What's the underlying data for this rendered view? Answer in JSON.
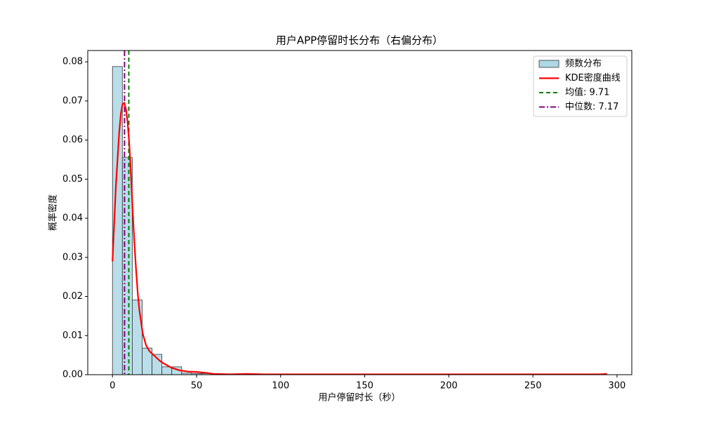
{
  "chart_data": {
    "type": "histogram",
    "title": "用户APP停留时长分布（右偏分布）",
    "x_label": "用户停留时长（秒）",
    "y_label": "概率密度",
    "bins": [
      0,
      5.88,
      11.76,
      17.64,
      23.52,
      29.4,
      35.28,
      41.16,
      47.04,
      52.92,
      58.8,
      64.68,
      70.56,
      76.44,
      82.32,
      88.2,
      94.08,
      99.96,
      105.84,
      111.72,
      117.6,
      123.48,
      129.36,
      135.24,
      141.12,
      147,
      152.88,
      158.76,
      164.64,
      170.52,
      176.4,
      182.28,
      188.16,
      194.04,
      199.92,
      205.8,
      211.68,
      217.56,
      223.44,
      229.32,
      235.2,
      241.08,
      246.96,
      252.84,
      258.72,
      264.6,
      270.48,
      276.36,
      282.24,
      288.12,
      294
    ],
    "counts": [
      0.0788,
      0.0555,
      0.0191,
      0.0068,
      0.0052,
      0.002,
      0.002,
      0.0004,
      0.0003,
      0.0003,
      0.0001,
      0,
      0.0001,
      0.0001,
      0,
      0,
      0,
      0,
      0,
      0,
      0,
      0,
      0,
      0,
      0,
      0,
      0,
      0,
      0,
      0,
      0,
      0,
      0,
      0,
      0,
      0,
      0,
      0,
      0,
      0,
      0,
      0,
      0,
      0,
      0,
      0,
      0,
      0,
      0,
      0.0001
    ],
    "hist_name": "频数分布",
    "hist_color": "#add8e6",
    "hist_edge": "#333333",
    "lines": [
      {
        "name": "KDE密度曲线",
        "color": "#ff0000",
        "x": [
          0,
          2,
          4,
          5,
          6,
          7,
          8,
          9,
          10,
          11,
          12,
          13,
          14,
          15,
          16,
          18,
          20,
          22,
          25,
          28,
          30,
          35,
          40,
          45,
          50,
          55,
          60,
          70,
          80,
          90,
          100,
          150,
          200,
          250,
          290,
          294
        ],
        "values": [
          0.029,
          0.048,
          0.062,
          0.0668,
          0.0692,
          0.0695,
          0.068,
          0.0645,
          0.059,
          0.051,
          0.042,
          0.034,
          0.027,
          0.021,
          0.0165,
          0.0105,
          0.0075,
          0.006,
          0.0048,
          0.0036,
          0.003,
          0.0018,
          0.0011,
          0.0008,
          0.0007,
          0.0005,
          0.0002,
          0.0001,
          0.0002,
          0.0001,
          0.0001,
          0.0001,
          0.0001,
          0.0001,
          0.0001,
          0.0002
        ]
      }
    ],
    "vlines": [
      {
        "name": "均值: 9.71",
        "value": 9.71,
        "color": "#008000",
        "dash": "6,4"
      },
      {
        "name": "中位数: 7.17",
        "value": 7.17,
        "color": "#800080",
        "dash": "8,3,2,3"
      }
    ],
    "xlim": [
      -14.7,
      308.8
    ],
    "ylim": [
      0,
      0.0829
    ],
    "xticks": [
      0,
      50,
      100,
      150,
      200,
      250,
      300
    ],
    "yticks": [
      {
        "value": 0,
        "label": "0.00"
      },
      0.01,
      0.02,
      0.03,
      0.04,
      0.05,
      0.06,
      0.07,
      0.08
    ]
  }
}
